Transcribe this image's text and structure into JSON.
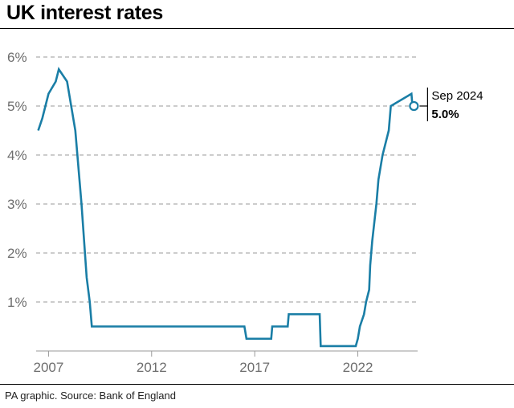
{
  "header": {
    "title": "UK interest rates"
  },
  "footer": {
    "source": "PA graphic. Source: Bank of England"
  },
  "chart_data": {
    "type": "line",
    "title": "UK interest rates",
    "xlabel": "",
    "ylabel": "",
    "xlim": [
      2006.4,
      2024.9
    ],
    "ylim": [
      0,
      6
    ],
    "grid": "horizontal dashed",
    "line_color": "#1a7ea6",
    "y_ticks": [
      {
        "value": 1,
        "label": "1%"
      },
      {
        "value": 2,
        "label": "2%"
      },
      {
        "value": 3,
        "label": "3%"
      },
      {
        "value": 4,
        "label": "4%"
      },
      {
        "value": 5,
        "label": "5%"
      },
      {
        "value": 6,
        "label": "6%"
      }
    ],
    "x_ticks": [
      {
        "value": 2007,
        "label": "2007"
      },
      {
        "value": 2012,
        "label": "2012"
      },
      {
        "value": 2017,
        "label": "2017"
      },
      {
        "value": 2022,
        "label": "2022"
      }
    ],
    "series": [
      {
        "x": [
          2006.5,
          2006.7,
          2006.85,
          2007.0,
          2007.35,
          2007.5,
          2007.9,
          2008.0,
          2008.1,
          2008.3,
          2008.6,
          2008.85,
          2009.0,
          2009.1,
          2016.5,
          2016.6,
          2017.8,
          2017.85,
          2018.6,
          2018.65,
          2020.15,
          2020.2,
          2021.9,
          2022.0,
          2022.1,
          2022.3,
          2022.4,
          2022.55,
          2022.6,
          2022.7,
          2022.9,
          2023.0,
          2023.2,
          2023.35,
          2023.5,
          2023.6,
          2024.6,
          2024.65,
          2024.72
        ],
        "y": [
          4.5,
          4.75,
          5.0,
          5.25,
          5.5,
          5.75,
          5.5,
          5.25,
          5.0,
          4.5,
          3.0,
          1.5,
          1.0,
          0.5,
          0.5,
          0.25,
          0.25,
          0.5,
          0.5,
          0.75,
          0.75,
          0.1,
          0.1,
          0.25,
          0.5,
          0.75,
          1.0,
          1.25,
          1.75,
          2.25,
          3.0,
          3.5,
          4.0,
          4.25,
          4.5,
          5.0,
          5.25,
          5.0,
          5.0
        ]
      }
    ],
    "annotation": {
      "date": "Sep 2024",
      "value": "5.0%",
      "x": 2024.72,
      "y": 5.0
    }
  }
}
